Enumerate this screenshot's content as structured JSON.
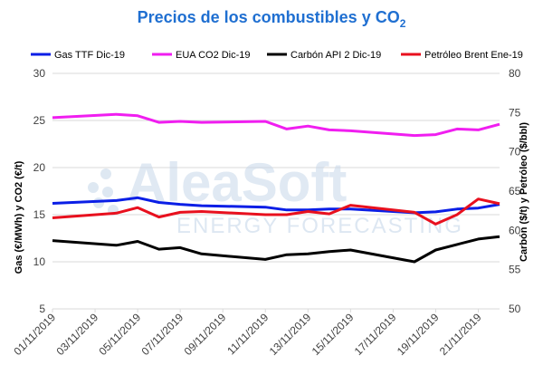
{
  "chart_data": {
    "type": "line",
    "title_main": "Precios de los combustibles y CO",
    "title_sub": "2",
    "ylabel_left": "Gas (€/MWh) y CO2 (€/t)",
    "ylabel_right": "Carbón ($/t) y Petróleo ($/bbl)",
    "ylim_left": [
      5,
      30
    ],
    "ylim_right": [
      50,
      80
    ],
    "yticks_left": [
      5,
      10,
      15,
      20,
      25,
      30
    ],
    "yticks_right": [
      50,
      55,
      60,
      65,
      70,
      75,
      80
    ],
    "grid": true,
    "legend_position": "top",
    "x_tick_labels": [
      "01/11/2019",
      "03/11/2019",
      "05/11/2019",
      "07/11/2019",
      "09/11/2019",
      "11/11/2019",
      "13/11/2019",
      "15/11/2019",
      "17/11/2019",
      "19/11/2019",
      "21/11/2019"
    ],
    "x": [
      "01/11/2019",
      "04/11/2019",
      "05/11/2019",
      "06/11/2019",
      "07/11/2019",
      "08/11/2019",
      "11/11/2019",
      "12/11/2019",
      "13/11/2019",
      "14/11/2019",
      "15/11/2019",
      "18/11/2019",
      "19/11/2019",
      "20/11/2019",
      "21/11/2019",
      "22/11/2019"
    ],
    "series": [
      {
        "name": "Gas TTF Dic-19",
        "axis": "left",
        "color": "#0a1ee6",
        "values": [
          16.2,
          16.5,
          16.8,
          16.3,
          16.1,
          15.95,
          15.8,
          15.5,
          15.5,
          15.6,
          15.6,
          15.2,
          15.3,
          15.6,
          15.7,
          16.1
        ]
      },
      {
        "name": "EUA CO2 Dic-19",
        "axis": "left",
        "color": "#f01ef0",
        "values": [
          25.3,
          25.65,
          25.5,
          24.8,
          24.9,
          24.8,
          24.9,
          24.1,
          24.4,
          24.0,
          23.9,
          23.4,
          23.5,
          24.1,
          24.0,
          24.6
        ]
      },
      {
        "name": "Carbón API 2 Dic-19",
        "axis": "right",
        "color": "#000000",
        "values": [
          58.7,
          58.1,
          58.6,
          57.6,
          57.8,
          57.0,
          56.3,
          56.9,
          57.0,
          57.3,
          57.5,
          56.0,
          57.5,
          58.2,
          58.9,
          59.2
        ]
      },
      {
        "name": "Petróleo Brent Ene-19",
        "axis": "right",
        "color": "#e8101e",
        "values": [
          61.6,
          62.2,
          62.9,
          61.7,
          62.3,
          62.4,
          62.0,
          62.0,
          62.4,
          62.1,
          63.2,
          62.3,
          60.8,
          62.0,
          64.0,
          63.4
        ]
      }
    ]
  },
  "watermark": {
    "brand": "AleaSoft",
    "tagline": "ENERGY FORECASTING"
  }
}
